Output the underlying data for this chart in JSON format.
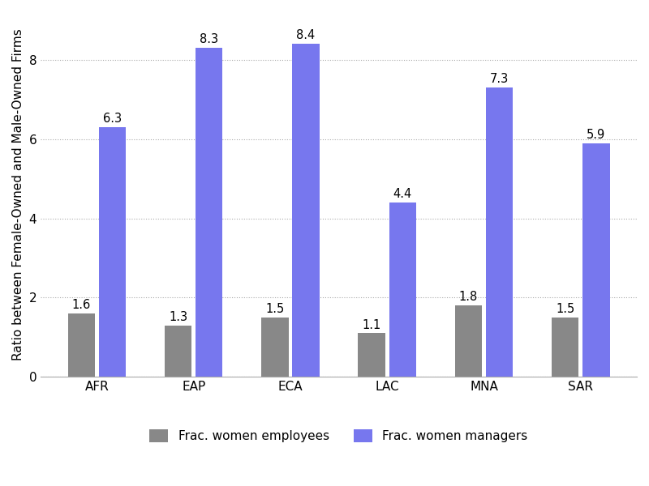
{
  "categories": [
    "AFR",
    "EAP",
    "ECA",
    "LAC",
    "MNA",
    "SAR"
  ],
  "employees": [
    1.6,
    1.3,
    1.5,
    1.1,
    1.8,
    1.5
  ],
  "managers": [
    6.3,
    8.3,
    8.4,
    4.4,
    7.3,
    5.9
  ],
  "bar_color_employees": "#888888",
  "bar_color_managers": "#7777ee",
  "ylabel": "Ratio between Female-Owned and Male-Owned Firms",
  "ylim": [
    0,
    9.2
  ],
  "yticks": [
    0,
    2,
    4,
    6,
    8
  ],
  "legend_employees": "Frac. women employees",
  "legend_managers": "Frac. women managers",
  "bar_width": 0.28,
  "label_fontsize": 11,
  "tick_fontsize": 11,
  "annotation_fontsize": 10.5,
  "background_color": "#ffffff",
  "grid_color": "#aaaaaa",
  "grid_linestyle": "dotted"
}
